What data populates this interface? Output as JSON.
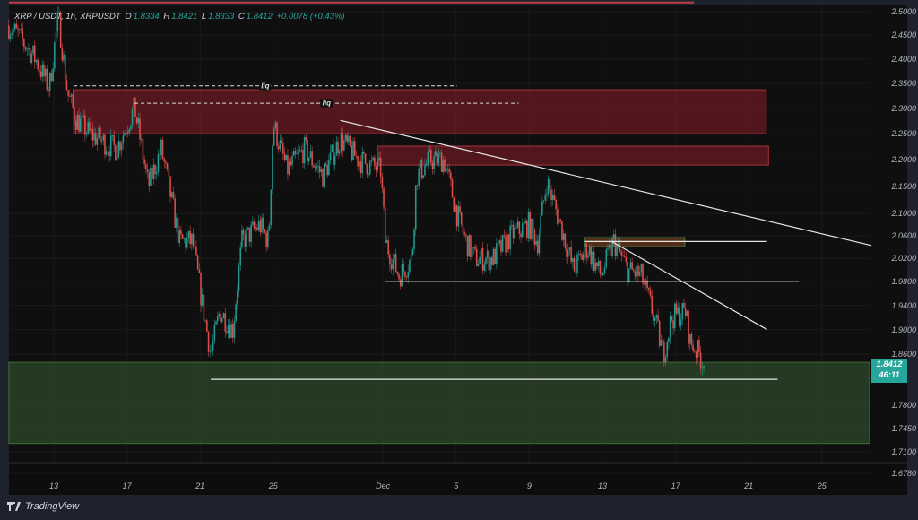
{
  "header": {
    "symbol": "XRP / USDT, 1h, XRPUSDT",
    "open_label": "O",
    "open": "1.8334",
    "high_label": "H",
    "high": "1.8421",
    "low_label": "L",
    "low": "1.8333",
    "close_label": "C",
    "close": "1.8412",
    "change": "+0.0078 (+0.43%)"
  },
  "price_tag": {
    "price": "1.8412",
    "countdown": "46:11"
  },
  "branding": {
    "name": "TradingView"
  },
  "colors": {
    "up": "#26a69a",
    "down": "#ef5350",
    "resistance_zone": "#8b1e2a",
    "support_zone": "#2e4a2a",
    "lines": "#e6e6e6",
    "background": "#0f0f0f"
  },
  "chart_data": {
    "type": "candlestick",
    "scale": "log",
    "timeframe": "1h",
    "ylim": [
      1.678,
      2.5
    ],
    "y_ticks": [
      "2.5000",
      "2.4500",
      "2.4000",
      "2.3500",
      "2.3000",
      "2.2500",
      "2.2000",
      "2.1500",
      "2.1000",
      "2.0600",
      "2.0200",
      "1.9800",
      "1.9400",
      "1.9000",
      "1.8600",
      "1.7800",
      "1.7450",
      "1.7100",
      "1.6780"
    ],
    "x_ticks": [
      "13",
      "17",
      "21",
      "25",
      "Dec",
      "5",
      "9",
      "13",
      "17",
      "21",
      "25"
    ],
    "grid": true,
    "price_path": [
      [
        "11-10 13:00",
        2.47
      ],
      [
        "11-11 01:00",
        2.45
      ],
      [
        "11-12 00:00",
        2.4
      ],
      [
        "11-12 18:00",
        2.34
      ],
      [
        "11-13 06:00",
        2.49
      ],
      [
        "11-13 18:00",
        2.33
      ],
      [
        "11-14 05:00",
        2.28
      ],
      [
        "11-14 23:00",
        2.25
      ],
      [
        "11-16 10:00",
        2.22
      ],
      [
        "11-17 10:00",
        2.3
      ],
      [
        "11-18 04:00",
        2.15
      ],
      [
        "11-18 21:00",
        2.22
      ],
      [
        "11-19 21:00",
        2.05
      ],
      [
        "11-20 14:00",
        2.05
      ],
      [
        "11-21 02:00",
        1.95
      ],
      [
        "11-21 14:00",
        1.86
      ],
      [
        "11-22 02:00",
        1.93
      ],
      [
        "11-22 19:00",
        1.9
      ],
      [
        "11-23 07:00",
        2.05
      ],
      [
        "11-24 06:00",
        2.08
      ],
      [
        "11-24 18:00",
        2.05
      ],
      [
        "11-25 00:00",
        2.27
      ],
      [
        "11-25 18:00",
        2.18
      ],
      [
        "11-26 17:00",
        2.22
      ],
      [
        "11-27 17:00",
        2.17
      ],
      [
        "11-28 16:00",
        2.24
      ],
      [
        "11-29 16:00",
        2.2
      ],
      [
        "11-30 21:00",
        2.18
      ],
      [
        "12-01 03:00",
        2.05
      ],
      [
        "12-01 21:00",
        1.99
      ],
      [
        "12-02 14:00",
        2.02
      ],
      [
        "12-02 20:00",
        2.17
      ],
      [
        "12-03 14:00",
        2.2
      ],
      [
        "12-04 08:00",
        2.2
      ],
      [
        "12-05 01:00",
        2.1
      ],
      [
        "12-05 13:00",
        2.05
      ],
      [
        "12-06 01:00",
        2.02
      ],
      [
        "12-07 00:00",
        2.02
      ],
      [
        "12-08 00:00",
        2.06
      ],
      [
        "12-08 23:00",
        2.08
      ],
      [
        "12-09 11:00",
        2.05
      ],
      [
        "12-09 23:00",
        2.16
      ],
      [
        "12-10 17:00",
        2.08
      ],
      [
        "12-11 10:00",
        2.0
      ],
      [
        "12-12 04:00",
        2.04
      ],
      [
        "12-12 22:00",
        1.99
      ],
      [
        "12-13 15:00",
        2.05
      ],
      [
        "12-14 09:00",
        2.0
      ],
      [
        "12-15 03:00",
        1.99
      ],
      [
        "12-15 20:00",
        1.92
      ],
      [
        "12-16 08:00",
        1.86
      ],
      [
        "12-16 19:00",
        1.92
      ],
      [
        "12-17 13:00",
        1.93
      ],
      [
        "12-17 19:00",
        1.88
      ],
      [
        "12-18 07:00",
        1.86
      ],
      [
        "12-18 13:00",
        1.8412
      ]
    ],
    "annotations": {
      "zones": [
        {
          "kind": "resistance",
          "from": "11-14 02:00",
          "to": "12-21 23:00",
          "top": 2.337,
          "bottom": 2.25
        },
        {
          "kind": "resistance",
          "from": "11-30 17:00",
          "to": "12-22 02:00",
          "top": 2.226,
          "bottom": 2.19
        },
        {
          "kind": "order-block",
          "from": "12-12 00:00",
          "to": "12-17 12:00",
          "top": 2.057,
          "bottom": 2.041
        },
        {
          "kind": "support",
          "from": "11-10 13:00",
          "to": "12-28 06:00",
          "top": 1.847,
          "bottom": 1.722
        }
      ],
      "liquidity_lines": [
        {
          "label": "liq",
          "from": "11-14 02:00",
          "to": "12-05 01:00",
          "price": 2.345
        },
        {
          "label": "liq",
          "from": "11-17 10:00",
          "to": "12-08 10:00",
          "price": 2.31
        }
      ],
      "horizontal_lines": [
        {
          "from": "12-12 00:00",
          "to": "12-22 00:00",
          "price": 2.05
        },
        {
          "from": "12-01 03:00",
          "to": "12-23 18:00",
          "price": 1.98
        },
        {
          "from": "11-21 14:00",
          "to": "12-22 14:00",
          "price": 1.82
        },
        {
          "from": "11-10 13:00",
          "to": "12-18 00:00",
          "price": 2.52
        }
      ],
      "trendlines": [
        {
          "from": [
            "11-28 16:00",
            2.276
          ],
          "to": [
            "12-27 17:00",
            2.043
          ]
        },
        {
          "from": [
            "12-13 12:00",
            2.05
          ],
          "to": [
            "12-22 00:00",
            1.9
          ]
        }
      ]
    }
  }
}
